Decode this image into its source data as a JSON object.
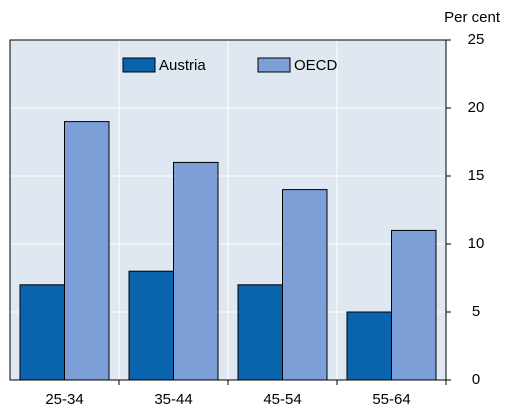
{
  "chart_data": {
    "type": "bar",
    "y_label": "Per cent",
    "categories": [
      "25-34",
      "35-44",
      "45-54",
      "55-64"
    ],
    "series": [
      {
        "name": "Austria",
        "color": "#0a64ad",
        "values": [
          7,
          8,
          7,
          5
        ]
      },
      {
        "name": "OECD",
        "color": "#7b9fd6",
        "values": [
          19,
          16,
          14,
          11
        ]
      }
    ],
    "ylim": [
      0,
      25
    ],
    "yticks": [
      0,
      5,
      10,
      15,
      20,
      25
    ],
    "grid": true,
    "legend": "top"
  }
}
